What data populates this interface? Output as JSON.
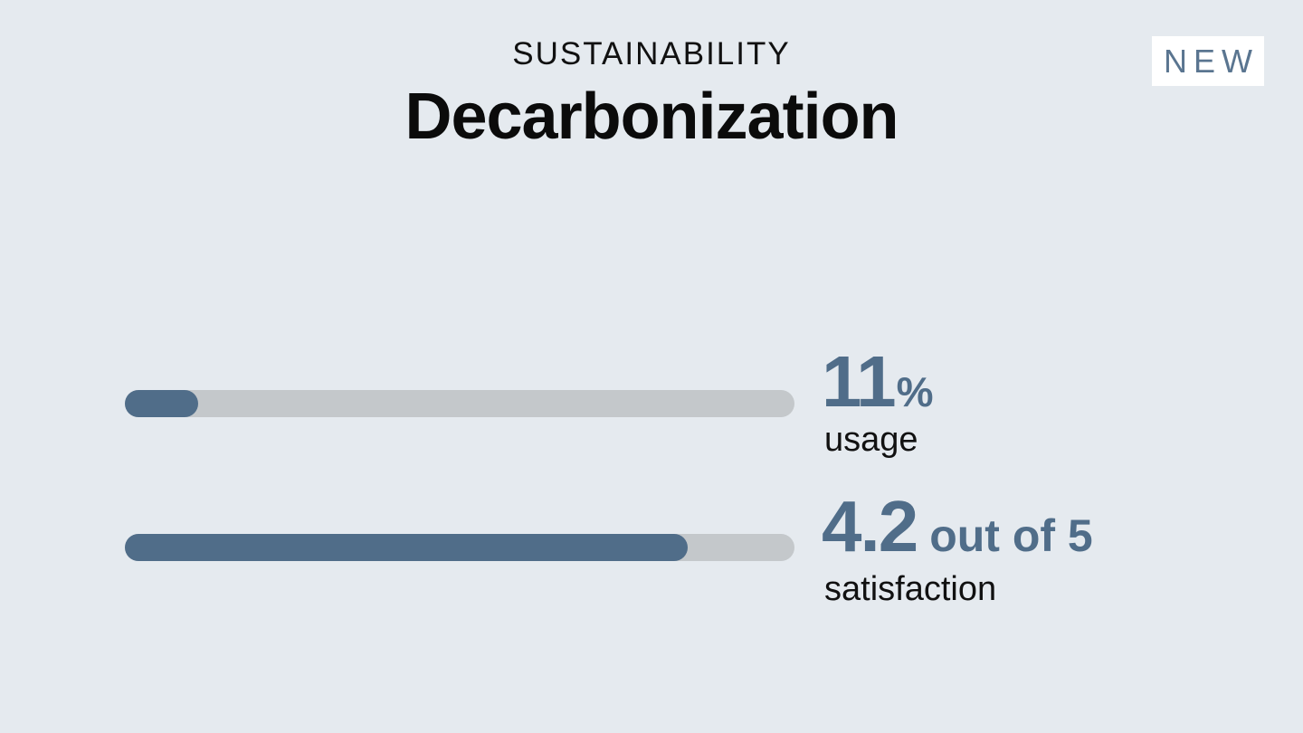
{
  "header": {
    "category": "SUSTAINABILITY",
    "title": "Decarbonization",
    "badge": "NEW"
  },
  "metrics": [
    {
      "value": 11,
      "unit": "%",
      "label": "usage",
      "range": [
        0,
        100
      ]
    },
    {
      "value": 4.2,
      "unit": "out of 5",
      "label": "satisfaction",
      "range": [
        0,
        5
      ]
    }
  ]
}
